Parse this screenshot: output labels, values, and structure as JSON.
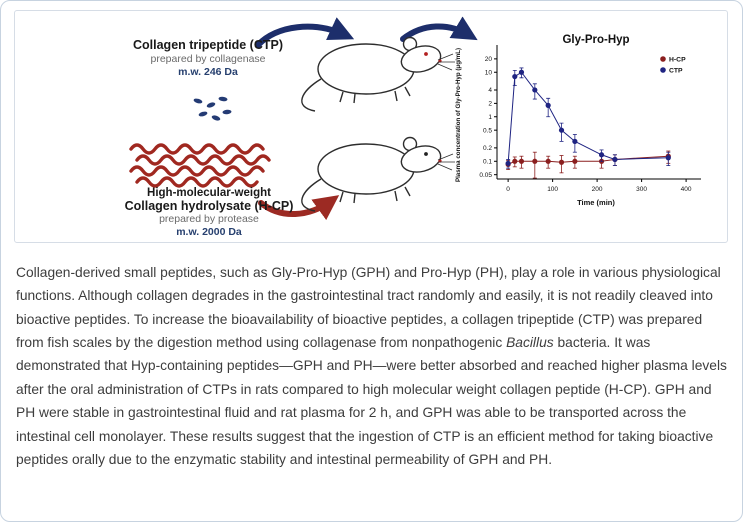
{
  "figure": {
    "ctp": {
      "title": "Collagen tripeptide (CTP)",
      "subtitle": "prepared by collagenase",
      "mw": "m.w. 246 Da"
    },
    "hcp": {
      "line1": "High-molecular-weight",
      "line2": "Collagen hydrolysate (H-CP)",
      "subtitle": "prepared by protease",
      "mw": "m.w. 2000 Da"
    },
    "colors": {
      "navy_arrow": "#1d2e6b",
      "red_arrow": "#9c2a23",
      "peptide_dots": "#243b74",
      "collagen_waves": "#a02820"
    }
  },
  "chart_data": {
    "type": "line",
    "title": "Gly-Pro-Hyp",
    "xlabel": "Time (min)",
    "ylabel": "Plasma concentration of Gly-Pro-Hyp (μg/mL)",
    "y_scale": "log",
    "xlim": [
      -25,
      420
    ],
    "ylim": [
      0.04,
      30
    ],
    "x_ticks": [
      0,
      100,
      200,
      300,
      400
    ],
    "y_ticks": [
      0.05,
      0.1,
      0.2,
      0.5,
      1,
      2,
      4,
      10,
      20
    ],
    "legend_position": "top-right",
    "grid": false,
    "series": [
      {
        "name": "H-CP",
        "color": "#8b1f1f",
        "x": [
          0,
          15,
          30,
          60,
          90,
          120,
          150,
          210,
          240,
          360
        ],
        "y": [
          0.085,
          0.1,
          0.1,
          0.1,
          0.1,
          0.095,
          0.1,
          0.1,
          0.11,
          0.13
        ],
        "err": [
          0.02,
          0.025,
          0.03,
          0.06,
          0.03,
          0.04,
          0.03,
          0.03,
          0.03,
          0.04
        ]
      },
      {
        "name": "CTP",
        "color": "#1f2482",
        "x": [
          0,
          15,
          30,
          60,
          90,
          120,
          150,
          210,
          240,
          360
        ],
        "y": [
          0.09,
          8,
          10,
          4,
          1.8,
          0.5,
          0.28,
          0.14,
          0.11,
          0.12
        ],
        "err": [
          0.02,
          3,
          2.5,
          1.5,
          0.8,
          0.22,
          0.12,
          0.04,
          0.03,
          0.04
        ]
      }
    ]
  },
  "abstract": {
    "segments": [
      {
        "text": "Collagen-derived small peptides, such as Gly-Pro-Hyp (GPH) and Pro-Hyp (PH), play a role in various physiological functions. Although collagen degrades in the gastrointestinal tract randomly and easily, it is not readily cleaved into bioactive peptides. To increase the bioavailability of bioactive peptides, a collagen tripeptide (CTP) was prepared from fish scales by the digestion method using collagenase from nonpathogenic ",
        "italic": false
      },
      {
        "text": "Bacillus",
        "italic": true
      },
      {
        "text": " bacteria. It was demonstrated that Hyp-containing peptides—GPH and PH—were better absorbed and reached higher plasma levels after the oral administration of CTPs in rats compared to high molecular weight collagen peptide (H-CP). GPH and PH were stable in gastrointestinal fluid and rat plasma for 2 h, and GPH was able to be transported across the intestinal cell monolayer. These results suggest that the ingestion of CTP is an efficient method for taking bioactive peptides orally due to the enzymatic stability and intestinal permeability of GPH and PH.",
        "italic": false
      }
    ]
  }
}
